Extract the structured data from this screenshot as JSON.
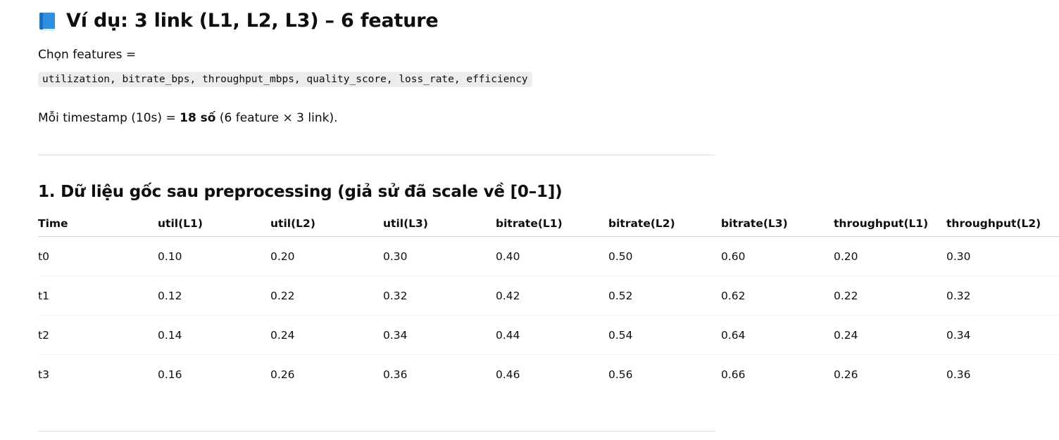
{
  "title": "Ví dụ: 3 link (L1, L2, L3) – 6 feature",
  "title_icon": "blue-book-icon",
  "choose_features_label": "Chọn features =",
  "features_code": "utilization, bitrate_bps, throughput_mbps, quality_score, loss_rate, efficiency",
  "timestamp_text": {
    "prefix": "Mỗi timestamp (10s) = ",
    "bold": "18 số",
    "suffix": " (6 feature × 3 link)."
  },
  "section1_title": "1. Dữ liệu gốc sau preprocessing (giả sử đã scale về [0–1])",
  "table": {
    "headers": [
      "Time",
      "util(L1)",
      "util(L2)",
      "util(L3)",
      "bitrate(L1)",
      "bitrate(L2)",
      "bitrate(L3)",
      "throughput(L1)",
      "throughput(L2)"
    ],
    "rows": [
      [
        "t0",
        "0.10",
        "0.20",
        "0.30",
        "0.40",
        "0.50",
        "0.60",
        "0.20",
        "0.30"
      ],
      [
        "t1",
        "0.12",
        "0.22",
        "0.32",
        "0.42",
        "0.52",
        "0.62",
        "0.22",
        "0.32"
      ],
      [
        "t2",
        "0.14",
        "0.24",
        "0.34",
        "0.44",
        "0.54",
        "0.64",
        "0.24",
        "0.34"
      ],
      [
        "t3",
        "0.16",
        "0.26",
        "0.36",
        "0.46",
        "0.56",
        "0.66",
        "0.26",
        "0.36"
      ]
    ]
  }
}
